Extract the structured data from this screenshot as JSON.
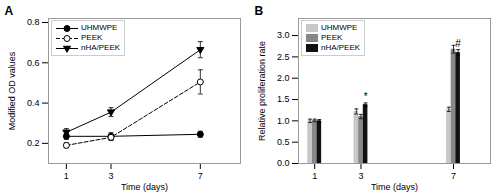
{
  "chart_data": [
    {
      "type": "line",
      "title": "A",
      "x": [
        1,
        3,
        7
      ],
      "xlabel": "Time (days)",
      "ylabel": "Modified OD values",
      "xlim": [
        0.2,
        8.8
      ],
      "xticks": [
        1,
        3,
        7
      ],
      "ylim": [
        0.1,
        0.82
      ],
      "yticks": [
        0.2,
        0.4,
        0.6,
        0.8
      ],
      "legend": "upper left",
      "series": [
        {
          "name": "UHMWPE",
          "color": "black",
          "marker": "circle",
          "line_style": "solid",
          "values": [
            0.235,
            0.235,
            0.245
          ],
          "errors": [
            0.015,
            0.018,
            0.015
          ]
        },
        {
          "name": "PEEK",
          "color": "black",
          "marker": "open-circle",
          "line_style": "dashed",
          "values": [
            0.19,
            0.23,
            0.505
          ],
          "errors": [
            0.012,
            0.015,
            0.06
          ]
        },
        {
          "name": "nHA/PEEK",
          "color": "black",
          "marker": "triangle-down",
          "line_style": "solid",
          "values": [
            0.255,
            0.355,
            0.665
          ],
          "errors": [
            0.018,
            0.022,
            0.04
          ]
        }
      ]
    },
    {
      "type": "bar",
      "title": "B",
      "x": [
        1,
        3,
        7
      ],
      "xlabel": "Time (days)",
      "ylabel": "Relative proliferation rate",
      "xlim": [
        0.3,
        8.6
      ],
      "xticks": [
        1,
        3,
        7
      ],
      "ylim": [
        0.0,
        3.4
      ],
      "yticks": [
        {
          "value": 0,
          "label": "0.0"
        },
        0.5,
        {
          "value": 1,
          "label": "1.0"
        },
        1.5,
        {
          "value": 2,
          "label": "2.0"
        },
        2.5,
        {
          "value": 3,
          "label": "3.0"
        }
      ],
      "legend": "upper left",
      "series": [
        {
          "name": "UHMWPE",
          "color": "#c8c8c8",
          "values": [
            1.0,
            1.22,
            1.27
          ],
          "errors": [
            0.04,
            0.06,
            0.05
          ]
        },
        {
          "name": "PEEK",
          "color": "#888888",
          "values": [
            1.01,
            1.1,
            2.68
          ],
          "errors": [
            0.03,
            0.05,
            0.09
          ]
        },
        {
          "name": "nHA/PEEK",
          "color": "#111111",
          "values": [
            1.0,
            1.38,
            2.6
          ],
          "errors": [
            0.03,
            0.04,
            0.07
          ]
        }
      ],
      "annotations": [
        {
          "text": "*",
          "x": 3,
          "series": "nHA/PEEK"
        },
        {
          "text": "#",
          "x": 7,
          "series": "nHA/PEEK"
        }
      ]
    }
  ]
}
